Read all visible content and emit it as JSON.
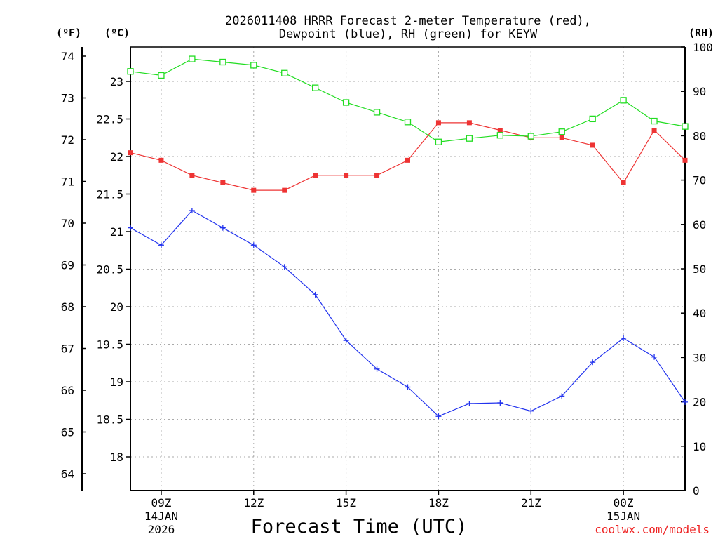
{
  "chart_data": {
    "type": "line",
    "title_line1": "2026011408 HRRR Forecast 2-meter Temperature (red),",
    "title_line2": "Dewpoint (blue), RH (green) for KEYW",
    "xlabel": "Forecast Time (UTC)",
    "credit": "coolwx.com/models",
    "unit_labels": {
      "fahrenheit": "(ºF)",
      "celsius": "(ºC)",
      "rh": "(RH)"
    },
    "x_range": [
      8,
      26
    ],
    "celsius_range": [
      17.6,
      23.6
    ],
    "rh_range": [
      0,
      100
    ],
    "x_ticks": [
      {
        "x": 9,
        "label": "09Z",
        "sub1": "14JAN",
        "sub2": "2026"
      },
      {
        "x": 12,
        "label": "12Z",
        "sub1": "",
        "sub2": ""
      },
      {
        "x": 15,
        "label": "15Z",
        "sub1": "",
        "sub2": ""
      },
      {
        "x": 18,
        "label": "18Z",
        "sub1": "",
        "sub2": ""
      },
      {
        "x": 21,
        "label": "21Z",
        "sub1": "",
        "sub2": ""
      },
      {
        "x": 24,
        "label": "00Z",
        "sub1": "15JAN",
        "sub2": ""
      }
    ],
    "celsius_ticks": [
      "18",
      "18.5",
      "19",
      "19.5",
      "20",
      "20.5",
      "21",
      "21.5",
      "22",
      "22.5",
      "23"
    ],
    "fahrenheit_ticks": [
      "64",
      "65",
      "66",
      "67",
      "68",
      "69",
      "70",
      "71",
      "72",
      "73",
      "74"
    ],
    "rh_ticks": [
      "0",
      "10",
      "20",
      "30",
      "40",
      "50",
      "60",
      "70",
      "80",
      "90",
      "100"
    ],
    "x": [
      8,
      9,
      10,
      11,
      12,
      13,
      14,
      15,
      16,
      17,
      18,
      19,
      20,
      21,
      22,
      23,
      24,
      25,
      26
    ],
    "series": [
      {
        "name": "2-meter Temperature",
        "axis": "celsius",
        "color": "#ee3333",
        "marker": "filled-square",
        "values": [
          22.05,
          21.95,
          21.75,
          21.65,
          21.55,
          21.55,
          21.75,
          21.75,
          21.75,
          21.95,
          22.45,
          22.45,
          22.35,
          22.25,
          22.25,
          22.15,
          21.65,
          22.35,
          21.95
        ]
      },
      {
        "name": "Dewpoint",
        "axis": "celsius",
        "color": "#2233ee",
        "marker": "plus",
        "values": [
          21.05,
          20.82,
          21.28,
          21.05,
          20.82,
          20.53,
          20.16,
          19.55,
          19.17,
          18.93,
          18.54,
          18.71,
          18.72,
          18.61,
          18.81,
          19.26,
          19.58,
          19.33,
          18.73
        ]
      },
      {
        "name": "RH",
        "axis": "rh",
        "color": "#22dd22",
        "marker": "open-square",
        "values": [
          94.5,
          93.6,
          97.3,
          96.6,
          95.9,
          94.1,
          90.8,
          87.5,
          85.3,
          83.1,
          78.6,
          79.4,
          80.1,
          79.9,
          80.9,
          83.8,
          88.0,
          83.3,
          82.1
        ]
      }
    ]
  }
}
